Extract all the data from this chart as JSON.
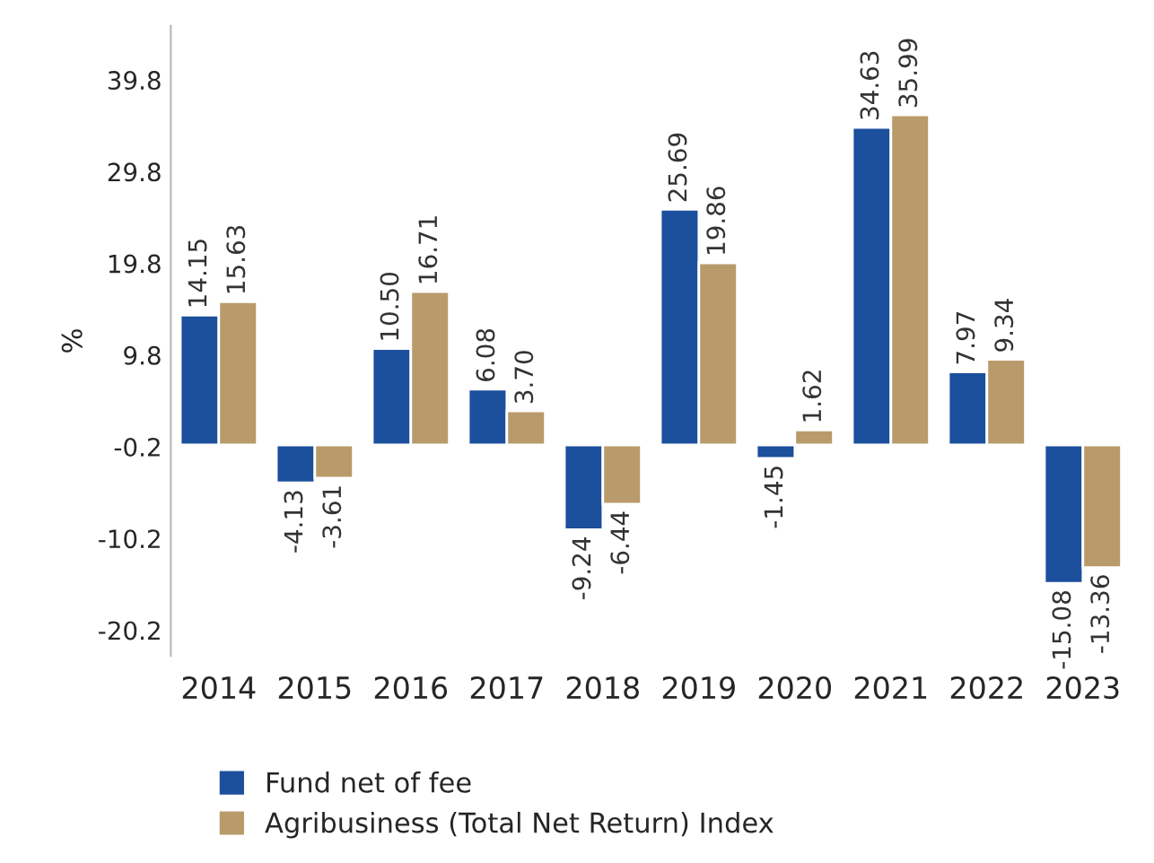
{
  "chart_data": {
    "type": "bar",
    "ylabel": "%",
    "categories": [
      "2014",
      "2015",
      "2016",
      "2017",
      "2018",
      "2019",
      "2020",
      "2021",
      "2022",
      "2023"
    ],
    "series": [
      {
        "name": "Fund net of fee",
        "color": "#1c4f9c",
        "values": [
          14.15,
          -4.13,
          10.5,
          6.08,
          -9.24,
          25.69,
          -1.45,
          34.63,
          7.97,
          -15.08
        ]
      },
      {
        "name": "Agribusiness (Total Net Return) Index",
        "color": "#b99b6b",
        "values": [
          15.63,
          -3.61,
          16.71,
          3.7,
          -6.44,
          19.86,
          1.62,
          35.99,
          9.34,
          -13.36
        ]
      }
    ],
    "value_labels": [
      [
        "14.15",
        "-4.13",
        "10.50",
        "6.08",
        "-9.24",
        "25.69",
        "-1.45",
        "34.63",
        "7.97",
        "-15.08"
      ],
      [
        "15.63",
        "-3.61",
        "16.71",
        "3.70",
        "-6.44",
        "19.86",
        "1.62",
        "35.99",
        "9.34",
        "-13.36"
      ]
    ],
    "ylim": [
      -23,
      45.7
    ],
    "yticks": [
      -20.2,
      -10.2,
      -0.2,
      9.8,
      19.8,
      29.8,
      39.8
    ],
    "grid": false,
    "legend": "bottom left"
  }
}
